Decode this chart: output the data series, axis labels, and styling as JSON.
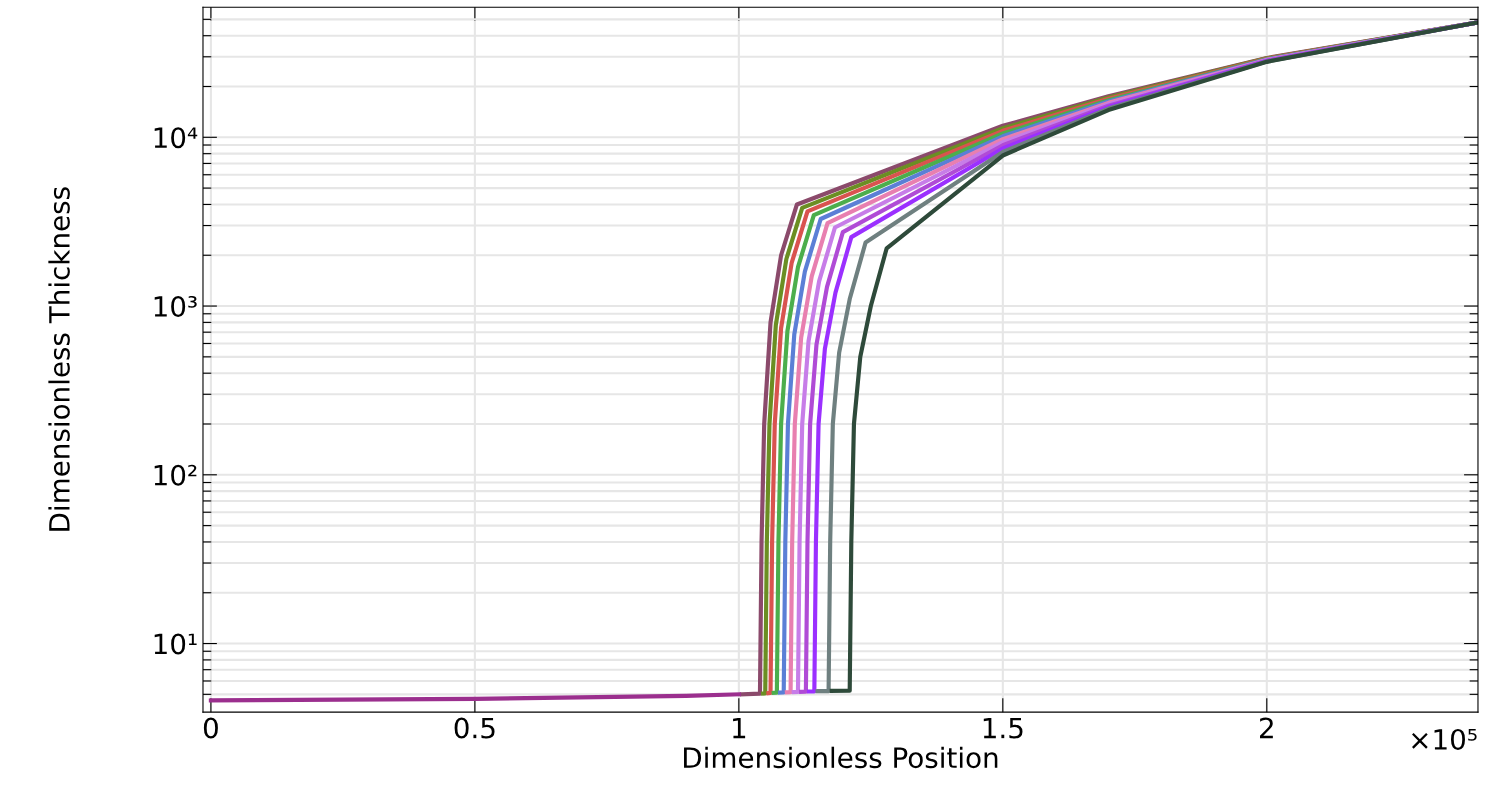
{
  "chart_data": {
    "type": "line",
    "xlabel": "Dimensionless Position",
    "ylabel": "Dimensionless Thickness",
    "log": "y",
    "grid": true,
    "marker": "none",
    "line_style": "solid",
    "xlim": [
      -0.015,
      2.4
    ],
    "xticks": [
      0,
      {
        "value": 0.5,
        "label": "0.5"
      },
      1,
      {
        "value": 1.5,
        "label": "1.5"
      },
      2
    ],
    "ylim": [
      3.92,
      59000
    ],
    "yticks": [
      {
        "value": 5,
        "label": null
      },
      {
        "value": 6,
        "label": null
      },
      {
        "value": 7,
        "label": null
      },
      {
        "value": 8,
        "label": null
      },
      {
        "value": 9,
        "label": null
      },
      {
        "value": 10,
        "label": "10¹"
      },
      {
        "value": 20,
        "label": null
      },
      {
        "value": 30,
        "label": null
      },
      {
        "value": 40,
        "label": null
      },
      {
        "value": 50,
        "label": null
      },
      {
        "value": 60,
        "label": null
      },
      {
        "value": 70,
        "label": null
      },
      {
        "value": 80,
        "label": null
      },
      {
        "value": 90,
        "label": null
      },
      {
        "value": 100,
        "label": "10²"
      },
      {
        "value": 200,
        "label": null
      },
      {
        "value": 300,
        "label": null
      },
      {
        "value": 400,
        "label": null
      },
      {
        "value": 500,
        "label": null
      },
      {
        "value": 600,
        "label": null
      },
      {
        "value": 700,
        "label": null
      },
      {
        "value": 800,
        "label": null
      },
      {
        "value": 900,
        "label": null
      },
      {
        "value": 1000,
        "label": "10³"
      },
      {
        "value": 2000,
        "label": null
      },
      {
        "value": 3000,
        "label": null
      },
      {
        "value": 4000,
        "label": null
      },
      {
        "value": 5000,
        "label": null
      },
      {
        "value": 6000,
        "label": null
      },
      {
        "value": 7000,
        "label": null
      },
      {
        "value": 8000,
        "label": null
      },
      {
        "value": 9000,
        "label": null
      },
      {
        "value": 10000,
        "label": "10⁴"
      },
      {
        "value": 20000,
        "label": null
      },
      {
        "value": 30000,
        "label": null
      },
      {
        "value": 40000,
        "label": null
      },
      {
        "value": 50000,
        "label": null
      }
    ],
    "annotations": [
      "×10⁵"
    ],
    "series": [
      {
        "color": "#8b4a6b",
        "x": [
          1.006,
          1.04,
          1.043,
          1.048,
          1.06,
          1.08,
          1.11,
          1.5,
          1.7,
          2.0,
          2.4
        ],
        "values": [
          5.0,
          5.05,
          40,
          200,
          800,
          2000,
          4000,
          11700,
          17500,
          29500,
          48000
        ]
      },
      {
        "color": "#6b8e23",
        "x": [
          1.046,
          1.05,
          1.053,
          1.058,
          1.07,
          1.09,
          1.12,
          1.5,
          1.7,
          2.0,
          2.4
        ],
        "values": [
          5.06,
          5.07,
          40,
          200,
          770,
          1900,
          3820,
          11310,
          17200,
          29350,
          48000
        ]
      },
      {
        "color": "#d9534f",
        "x": [
          1.056,
          1.06,
          1.063,
          1.068,
          1.08,
          1.1,
          1.13,
          1.5,
          1.7,
          2.0,
          2.4
        ],
        "values": [
          5.08,
          5.09,
          40,
          200,
          740,
          1800,
          3640,
          10920,
          16900,
          29200,
          48000
        ]
      },
      {
        "color": "#4cae4c",
        "x": [
          1.066,
          1.072,
          1.075,
          1.08,
          1.092,
          1.112,
          1.142,
          1.5,
          1.7,
          2.0,
          2.4
        ],
        "values": [
          5.1,
          5.11,
          40,
          200,
          710,
          1700,
          3460,
          10530,
          16600,
          29050,
          48000
        ]
      },
      {
        "color": "#5b7fd6",
        "x": [
          1.078,
          1.085,
          1.088,
          1.093,
          1.105,
          1.125,
          1.155,
          1.5,
          1.7,
          2.0,
          2.4
        ],
        "values": [
          5.12,
          5.13,
          40,
          200,
          680,
          1600,
          3280,
          10140,
          16300,
          28900,
          48000
        ]
      },
      {
        "color": "#e87fb0",
        "x": [
          1.091,
          1.098,
          1.101,
          1.106,
          1.118,
          1.138,
          1.168,
          1.5,
          1.7,
          2.0,
          2.4
        ],
        "values": [
          5.14,
          5.15,
          40,
          200,
          650,
          1500,
          3100,
          9750,
          16000,
          28750,
          48000
        ]
      },
      {
        "color": "#c77de8",
        "x": [
          1.104,
          1.112,
          1.115,
          1.12,
          1.132,
          1.152,
          1.182,
          1.5,
          1.7,
          2.0,
          2.4
        ],
        "values": [
          5.16,
          5.17,
          40,
          200,
          620,
          1400,
          2920,
          9360,
          15700,
          28600,
          48000
        ]
      },
      {
        "color": "#b04bd6",
        "x": [
          1.118,
          1.127,
          1.13,
          1.135,
          1.147,
          1.167,
          1.197,
          1.5,
          1.7,
          2.0,
          2.4
        ],
        "values": [
          5.18,
          5.19,
          40,
          200,
          590,
          1300,
          2740,
          8970,
          15400,
          28450,
          48000
        ]
      },
      {
        "color": "#9b30ff",
        "x": [
          1.133,
          1.143,
          1.146,
          1.151,
          1.163,
          1.183,
          1.213,
          1.5,
          1.7,
          2.0,
          2.4
        ],
        "values": [
          5.2,
          5.21,
          40,
          200,
          560,
          1200,
          2560,
          8580,
          15100,
          28300,
          48000
        ]
      },
      {
        "color": "#6f8080",
        "x": [
          1.149,
          1.17,
          1.173,
          1.178,
          1.19,
          1.21,
          1.24,
          1.5,
          1.7,
          2.0,
          2.4
        ],
        "values": [
          5.22,
          5.23,
          40,
          200,
          530,
          1100,
          2380,
          8190,
          14800,
          28150,
          48000
        ]
      },
      {
        "color": "#2e4a3a",
        "x": [
          1.176,
          1.21,
          1.213,
          1.218,
          1.23,
          1.25,
          1.28,
          1.5,
          1.7,
          2.0,
          2.4
        ],
        "values": [
          5.24,
          5.25,
          40,
          200,
          500,
          1000,
          2200,
          7800,
          14500,
          28000,
          48000
        ]
      },
      {
        "color": "#9b2f8e",
        "x": [
          0,
          0.5,
          0.9,
          1.0
        ],
        "values": [
          4.6,
          4.7,
          4.9,
          5.0
        ]
      }
    ]
  }
}
